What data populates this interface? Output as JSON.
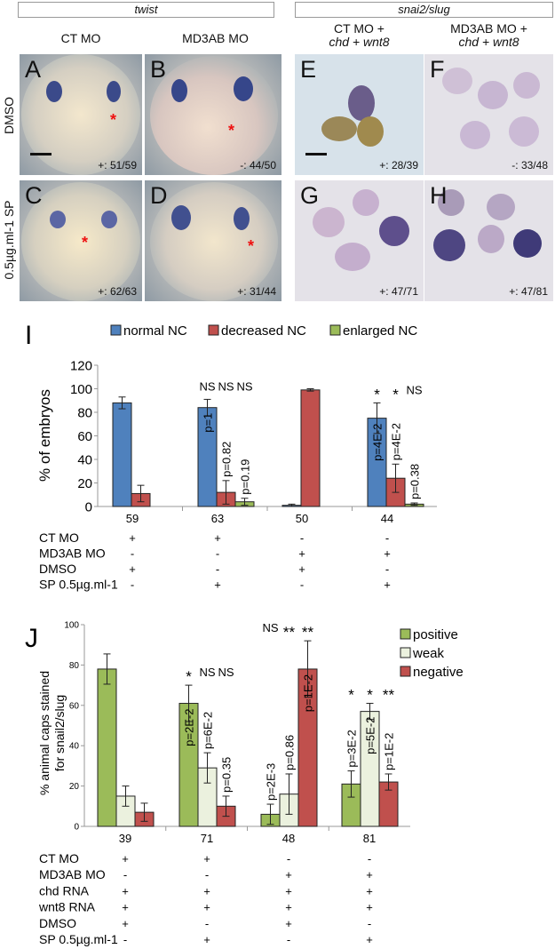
{
  "headers": {
    "left": "twist",
    "right": "snai2/slug"
  },
  "columns": {
    "a": "CT MO",
    "b": "MD3AB MO",
    "e_line1": "CT MO +",
    "e_line2": "chd  + wnt8",
    "f_line1": "MD3AB MO +",
    "f_line2": "chd  + wnt8"
  },
  "rows": {
    "top": "DMSO",
    "bottom": "0.5µg.ml-1 SP"
  },
  "panels": [
    {
      "letter": "A",
      "count": "+: 51/59"
    },
    {
      "letter": "B",
      "count": "-: 44/50"
    },
    {
      "letter": "C",
      "count": "+: 62/63"
    },
    {
      "letter": "D",
      "count": "+: 31/44"
    },
    {
      "letter": "E",
      "count": "+: 28/39"
    },
    {
      "letter": "F",
      "count": "-: 33/48"
    },
    {
      "letter": "G",
      "count": "+: 47/71"
    },
    {
      "letter": "H",
      "count": "+: 47/81"
    }
  ],
  "chart_data": [
    {
      "type": "bar",
      "panel_letter": "I",
      "ylabel": "% of embryos",
      "ylim": [
        0,
        120
      ],
      "yticks": [
        0,
        20,
        40,
        60,
        80,
        100,
        120
      ],
      "grid": false,
      "legend_position": "top",
      "categories": [
        "59",
        "63",
        "50",
        "44"
      ],
      "series": [
        {
          "name": "normal NC",
          "color": "#4f81bd",
          "values": [
            88,
            84,
            1,
            75
          ],
          "errors": [
            5,
            7,
            1,
            13
          ]
        },
        {
          "name": "decreased NC",
          "color": "#c0504d",
          "values": [
            11,
            12,
            99,
            24
          ],
          "errors": [
            7,
            10,
            1,
            12
          ]
        },
        {
          "name": "enlarged NC",
          "color": "#9bbb59",
          "values": [
            null,
            4,
            null,
            2
          ],
          "errors": [
            null,
            3,
            null,
            1
          ]
        }
      ],
      "significance": [
        [],
        [
          "NS",
          "NS",
          "NS"
        ],
        [],
        [
          "*",
          "*",
          "NS"
        ]
      ],
      "pvalues": [
        [],
        [
          "p=1",
          "p=0.82",
          "p=0.19"
        ],
        [],
        [
          "p=4E-2",
          "p=4E-2",
          "p=0.38"
        ]
      ],
      "conditions": [
        {
          "label": "CT MO",
          "values": [
            "+",
            "+",
            "-",
            "-"
          ]
        },
        {
          "label": "MD3AB MO",
          "values": [
            "-",
            "-",
            "+",
            "+"
          ]
        },
        {
          "label": "DMSO",
          "values": [
            "+",
            "-",
            "+",
            "-"
          ]
        },
        {
          "label": "SP 0.5µg.ml-1",
          "values": [
            "-",
            "+",
            "-",
            "+"
          ]
        }
      ]
    },
    {
      "type": "bar",
      "panel_letter": "J",
      "ylabel_line1": "% animal caps stained",
      "ylabel_line2": "for snail2/slug",
      "ylim": [
        0,
        100
      ],
      "yticks": [
        0,
        20,
        40,
        60,
        80,
        100
      ],
      "grid": false,
      "legend_position": "top-right",
      "categories": [
        "39",
        "71",
        "48",
        "81"
      ],
      "series": [
        {
          "name": "positive",
          "color": "#9bbb59",
          "values": [
            78,
            61,
            6,
            21
          ],
          "errors": [
            7.5,
            9,
            5,
            6.5
          ]
        },
        {
          "name": "weak",
          "color": "#ebf1de",
          "values": [
            15,
            29,
            16,
            57
          ],
          "errors": [
            5,
            7.5,
            10,
            4
          ]
        },
        {
          "name": "negative",
          "color": "#c0504d",
          "values": [
            7,
            10,
            78,
            22
          ],
          "errors": [
            4.5,
            5,
            14,
            4
          ]
        }
      ],
      "significance": [
        [],
        [
          "*",
          "NS",
          "NS"
        ],
        [
          "NS",
          "**",
          "**"
        ],
        [
          "*",
          "*",
          "**"
        ]
      ],
      "pvalues": [
        [],
        [
          "p=2E-2",
          "p=6E-2",
          "p=0.35"
        ],
        [
          "p=2E-3",
          "p=0.86",
          "p=1E-2"
        ],
        [
          "p=3E-2",
          "p=5E-2",
          "p=1E-2"
        ]
      ],
      "conditions": [
        {
          "label": "CT MO",
          "values": [
            "+",
            "+",
            "-",
            "-"
          ]
        },
        {
          "label": "MD3AB MO",
          "values": [
            "-",
            "-",
            "+",
            "+"
          ]
        },
        {
          "label": "chd RNA",
          "values": [
            "+",
            "+",
            "+",
            "+"
          ]
        },
        {
          "label": "wnt8 RNA",
          "values": [
            "+",
            "+",
            "+",
            "+"
          ]
        },
        {
          "label": "DMSO",
          "values": [
            "+",
            "-",
            "+",
            "-"
          ]
        },
        {
          "label": "SP 0.5µg.ml-1",
          "values": [
            "-",
            "+",
            "-",
            "+"
          ]
        }
      ]
    }
  ]
}
